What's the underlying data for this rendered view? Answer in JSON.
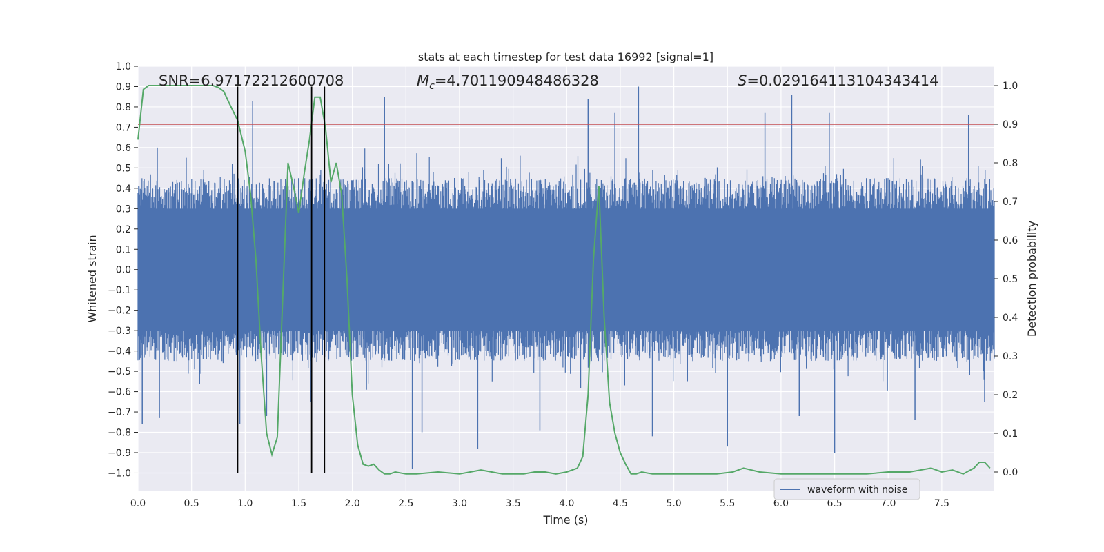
{
  "chart_data": {
    "type": "line",
    "title": "stats at each timestep for test data 16992 [signal=1]",
    "xlabel": "Time (s)",
    "ylabel_left": "Whitened strain",
    "ylabel_right": "Detection probability",
    "xlim": [
      0.0,
      7.99
    ],
    "ylim_left": [
      -1.09,
      1.0
    ],
    "ylim_right": [
      -0.05,
      1.05
    ],
    "x_ticks": [
      "0.0",
      "0.5",
      "1.0",
      "1.5",
      "2.0",
      "2.5",
      "3.0",
      "3.5",
      "4.0",
      "4.5",
      "5.0",
      "5.5",
      "6.0",
      "6.5",
      "7.0",
      "7.5"
    ],
    "y_ticks_left": [
      "1.0",
      "0.9",
      "0.8",
      "0.7",
      "0.6",
      "0.5",
      "0.4",
      "0.3",
      "0.2",
      "0.1",
      "0.0",
      "−0.1",
      "−0.2",
      "−0.3",
      "−0.4",
      "−0.5",
      "−0.6",
      "−0.7",
      "−0.8",
      "−0.9",
      "−1.0"
    ],
    "y_ticks_right": [
      "1.0",
      "0.9",
      "0.8",
      "0.7",
      "0.6",
      "0.5",
      "0.4",
      "0.3",
      "0.2",
      "0.1",
      "0.0"
    ],
    "grid": true,
    "legend_position": "lower-right",
    "annotations": {
      "snr": "SNR=6.97172212600708",
      "mc_symbol": "M",
      "mc_sub": "c",
      "mc_value": "=4.701190948486328",
      "s_symbol": "S",
      "s_value": "=0.029164113104343414"
    },
    "series": [
      {
        "name": "waveform with noise",
        "axis": "left",
        "color": "#4c72b0",
        "envelope_note_free": true,
        "typical_peak": 0.45,
        "spikes": [
          {
            "x": 0.04,
            "y": -0.76
          },
          {
            "x": 0.18,
            "y": 0.6
          },
          {
            "x": 0.2,
            "y": -0.73
          },
          {
            "x": 0.45,
            "y": 0.55
          },
          {
            "x": 0.95,
            "y": -0.76
          },
          {
            "x": 1.07,
            "y": 0.83
          },
          {
            "x": 1.2,
            "y": -0.72
          },
          {
            "x": 1.61,
            "y": -0.65
          },
          {
            "x": 2.3,
            "y": 0.85
          },
          {
            "x": 2.56,
            "y": -0.98
          },
          {
            "x": 2.65,
            "y": -0.8
          },
          {
            "x": 3.17,
            "y": -0.88
          },
          {
            "x": 3.75,
            "y": -0.79
          },
          {
            "x": 4.2,
            "y": 0.84
          },
          {
            "x": 4.45,
            "y": 0.77
          },
          {
            "x": 4.67,
            "y": 0.9
          },
          {
            "x": 4.8,
            "y": -0.82
          },
          {
            "x": 5.5,
            "y": -0.87
          },
          {
            "x": 5.85,
            "y": 0.77
          },
          {
            "x": 6.1,
            "y": 0.86
          },
          {
            "x": 6.17,
            "y": -0.72
          },
          {
            "x": 6.45,
            "y": 0.77
          },
          {
            "x": 6.5,
            "y": -0.9
          },
          {
            "x": 7.25,
            "y": -0.74
          },
          {
            "x": 7.75,
            "y": 0.76
          },
          {
            "x": 7.9,
            "y": -0.65
          }
        ]
      },
      {
        "name": "",
        "axis": "right",
        "color": "#55a868",
        "x": [
          0.0,
          0.05,
          0.1,
          0.2,
          0.3,
          0.4,
          0.5,
          0.6,
          0.7,
          0.75,
          0.8,
          0.85,
          0.93,
          1.0,
          1.05,
          1.1,
          1.15,
          1.2,
          1.25,
          1.3,
          1.35,
          1.4,
          1.45,
          1.5,
          1.55,
          1.6,
          1.65,
          1.7,
          1.75,
          1.8,
          1.85,
          1.9,
          1.95,
          2.0,
          2.05,
          2.1,
          2.15,
          2.2,
          2.25,
          2.3,
          2.35,
          2.4,
          2.5,
          2.6,
          2.8,
          3.0,
          3.1,
          3.2,
          3.3,
          3.4,
          3.5,
          3.6,
          3.7,
          3.8,
          3.9,
          4.0,
          4.1,
          4.15,
          4.2,
          4.25,
          4.3,
          4.35,
          4.4,
          4.45,
          4.5,
          4.55,
          4.6,
          4.65,
          4.7,
          4.8,
          4.9,
          5.0,
          5.2,
          5.4,
          5.55,
          5.6,
          5.65,
          5.8,
          6.0,
          6.2,
          6.4,
          6.6,
          6.8,
          7.0,
          7.2,
          7.3,
          7.4,
          7.5,
          7.6,
          7.7,
          7.8,
          7.85,
          7.9,
          7.95
        ],
        "y": [
          0.86,
          0.99,
          1.0,
          1.0,
          1.0,
          1.0,
          1.0,
          1.0,
          1.0,
          0.995,
          0.985,
          0.955,
          0.91,
          0.83,
          0.72,
          0.55,
          0.3,
          0.1,
          0.045,
          0.09,
          0.45,
          0.8,
          0.74,
          0.67,
          0.77,
          0.86,
          0.97,
          0.97,
          0.89,
          0.75,
          0.8,
          0.72,
          0.5,
          0.2,
          0.07,
          0.02,
          0.015,
          0.02,
          0.005,
          -0.005,
          -0.005,
          0.0,
          -0.005,
          -0.005,
          0.0,
          -0.005,
          0.0,
          0.005,
          0.0,
          -0.005,
          -0.005,
          -0.005,
          0.0,
          0.0,
          -0.005,
          0.0,
          0.01,
          0.04,
          0.2,
          0.55,
          0.74,
          0.4,
          0.18,
          0.1,
          0.05,
          0.02,
          -0.005,
          -0.005,
          0.0,
          -0.005,
          -0.005,
          -0.005,
          -0.005,
          -0.005,
          0.0,
          0.005,
          0.01,
          0.0,
          -0.005,
          -0.005,
          -0.005,
          -0.005,
          -0.005,
          0.0,
          0.0,
          0.005,
          0.01,
          0.0,
          0.005,
          -0.005,
          0.01,
          0.025,
          0.025,
          0.01
        ]
      }
    ],
    "threshold": {
      "axis": "right",
      "value": 0.9,
      "color": "#c44e52"
    },
    "vlines": [
      {
        "x": 0.93,
        "ymin": -1.0,
        "ymax": 0.9
      },
      {
        "x": 1.62,
        "ymin": -1.0,
        "ymax": 0.9
      },
      {
        "x": 1.74,
        "ymin": -1.0,
        "ymax": 0.9
      }
    ]
  }
}
